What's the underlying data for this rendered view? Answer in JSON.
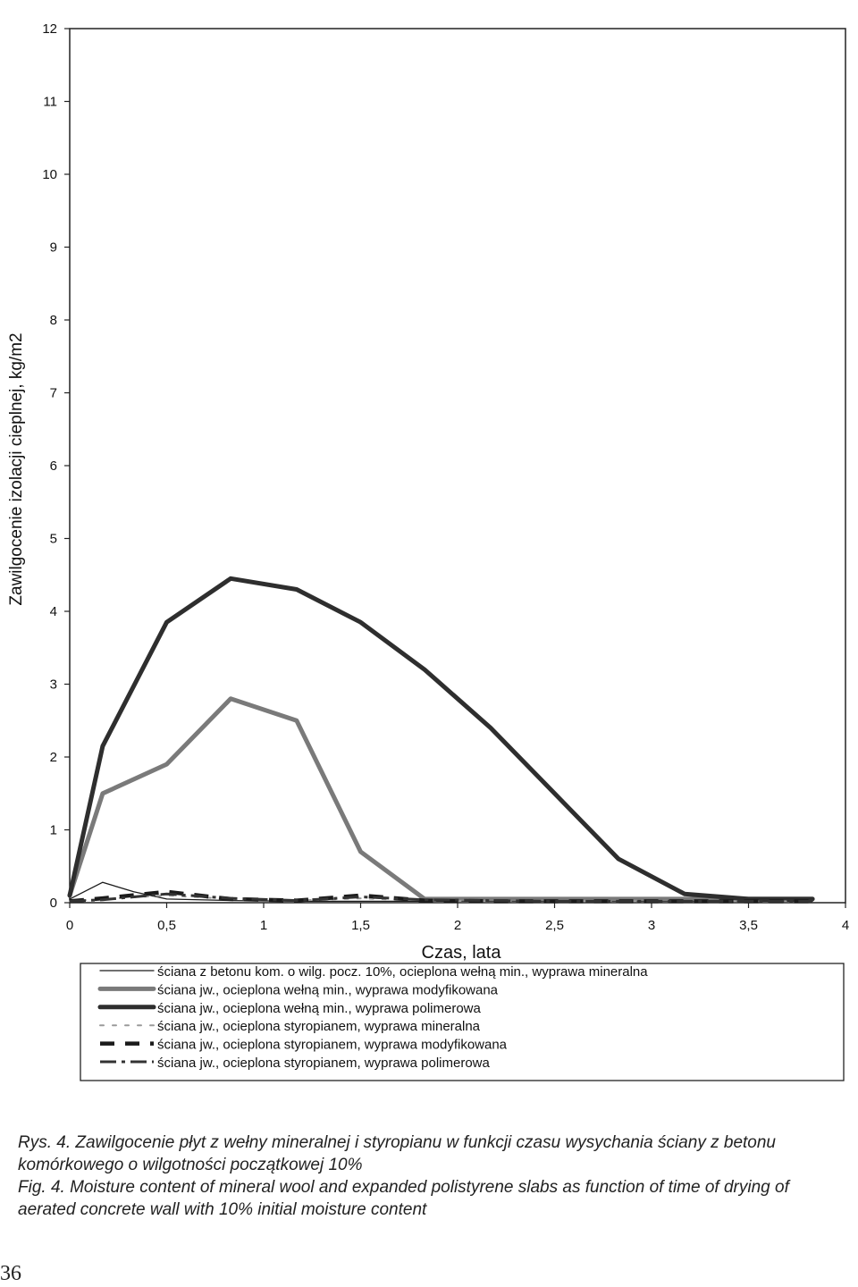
{
  "chart_data": {
    "type": "line",
    "title": "",
    "xlabel": "Czas, lata",
    "ylabel": "Zawilgocenie izolacji cieplnej, kg/m2",
    "xlim": [
      0,
      4
    ],
    "ylim": [
      0,
      12
    ],
    "x_ticks": [
      0,
      0.5,
      1,
      1.5,
      2,
      2.5,
      3,
      3.5,
      4
    ],
    "x_tick_labels": [
      "0",
      "0,5",
      "1",
      "1,5",
      "2",
      "2,5",
      "3",
      "3,5",
      "4"
    ],
    "y_ticks": [
      0,
      1,
      2,
      3,
      4,
      5,
      6,
      7,
      8,
      9,
      10,
      11,
      12
    ],
    "y_tick_labels": [
      "0",
      "1",
      "2",
      "3",
      "4",
      "5",
      "6",
      "7",
      "8",
      "9",
      "10",
      "11",
      "12"
    ],
    "grid": false,
    "legend_position": "below",
    "series": [
      {
        "name": "ściana z betonu kom. o wilg. pocz. 10%, ocieplona wełną min., wyprawa mineralna",
        "style": "thin-solid",
        "color": "#1a1a1a",
        "x": [
          0,
          0.17,
          0.33,
          0.5,
          0.83,
          1.17,
          1.5,
          1.83,
          2.17,
          2.5,
          2.83,
          3.17,
          3.5,
          3.83
        ],
        "y": [
          0.05,
          0.28,
          0.15,
          0.05,
          0.03,
          0.02,
          0.02,
          0.02,
          0.02,
          0.02,
          0.02,
          0.02,
          0.02,
          0.02
        ]
      },
      {
        "name": "ściana jw., ocieplona wełną min., wyprawa modyfikowana",
        "style": "thick-gray",
        "color": "#7a7a7a",
        "x": [
          0,
          0.17,
          0.5,
          0.83,
          1.17,
          1.5,
          1.83,
          2.17,
          2.5,
          2.83,
          3.17,
          3.5,
          3.83
        ],
        "y": [
          0.1,
          1.5,
          1.9,
          2.8,
          2.5,
          0.7,
          0.05,
          0.05,
          0.05,
          0.05,
          0.05,
          0.05,
          0.05
        ]
      },
      {
        "name": "ściana jw., ocieplona wełną min., wyprawa polimerowa",
        "style": "thick-dark",
        "color": "#2e2e2e",
        "x": [
          0,
          0.17,
          0.5,
          0.83,
          1.17,
          1.5,
          1.83,
          2.17,
          2.5,
          2.83,
          3.17,
          3.5,
          3.83
        ],
        "y": [
          0.1,
          2.15,
          3.85,
          4.45,
          4.3,
          3.85,
          3.2,
          2.4,
          1.5,
          0.6,
          0.12,
          0.05,
          0.05
        ]
      },
      {
        "name": "ściana jw., ocieplona styropianem, wyprawa mineralna",
        "style": "gray-dotted",
        "color": "#9a9a9a",
        "x": [
          0,
          0.17,
          0.5,
          0.83,
          1.17,
          1.5,
          1.83,
          2.17,
          2.5,
          2.83,
          3.17,
          3.5,
          3.83
        ],
        "y": [
          0.02,
          0.05,
          0.1,
          0.05,
          0.03,
          0.06,
          0.03,
          0.02,
          0.02,
          0.02,
          0.02,
          0.02,
          0.02
        ]
      },
      {
        "name": "ściana jw., ocieplona styropianem, wyprawa modyfikowana",
        "style": "thick-dashed",
        "color": "#1a1a1a",
        "x": [
          0,
          0.17,
          0.5,
          0.83,
          1.17,
          1.5,
          1.83,
          2.17,
          2.5,
          2.83,
          3.17,
          3.5,
          3.83
        ],
        "y": [
          0.02,
          0.06,
          0.15,
          0.05,
          0.03,
          0.1,
          0.03,
          0.02,
          0.02,
          0.02,
          0.02,
          0.02,
          0.02
        ]
      },
      {
        "name": "ściana jw., ocieplona styropianem, wyprawa polimerowa",
        "style": "dash-dot",
        "color": "#333333",
        "x": [
          0,
          0.17,
          0.5,
          0.83,
          1.17,
          1.5,
          1.83,
          2.17,
          2.5,
          2.83,
          3.17,
          3.5,
          3.83
        ],
        "y": [
          0.02,
          0.04,
          0.12,
          0.06,
          0.03,
          0.08,
          0.04,
          0.03,
          0.02,
          0.02,
          0.02,
          0.02,
          0.02
        ]
      }
    ]
  },
  "caption": {
    "pl": "Rys. 4. Zawilgocenie płyt z wełny mineralnej i styropianu w funkcji czasu wysychania ściany z betonu komórkowego o wilgotności początkowej 10%",
    "en": "Fig. 4. Moisture content of mineral wool and expanded polistyrene slabs as function of time of drying of aerated concrete wall with 10% initial moisture content"
  },
  "page_number": "36"
}
